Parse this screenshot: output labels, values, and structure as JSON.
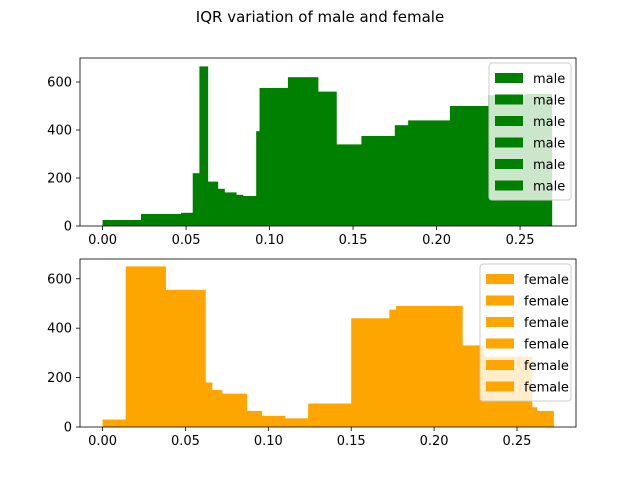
{
  "chart_data": {
    "title": "IQR variation of male and female",
    "panels": [
      {
        "type": "bar",
        "name": "male",
        "color": "#008000",
        "xlim": [
          -0.0135,
          0.2835
        ],
        "ylim": [
          0,
          700
        ],
        "xticks": [
          0.0,
          0.05,
          0.1,
          0.15,
          0.2,
          0.25
        ],
        "xtick_labels": [
          "0.00",
          "0.05",
          "0.10",
          "0.15",
          "0.20",
          "0.25"
        ],
        "yticks": [
          0,
          200,
          400,
          600
        ],
        "ytick_labels": [
          "0",
          "200",
          "400",
          "600"
        ],
        "legend_position": "upper right",
        "legend": [
          "male",
          "male",
          "male",
          "male",
          "male",
          "male"
        ],
        "bins": [
          [
            0.0,
            0.023,
            25
          ],
          [
            0.023,
            0.047,
            50
          ],
          [
            0.047,
            0.054,
            55
          ],
          [
            0.054,
            0.058,
            220
          ],
          [
            0.058,
            0.063,
            665
          ],
          [
            0.063,
            0.069,
            185
          ],
          [
            0.069,
            0.073,
            155
          ],
          [
            0.073,
            0.08,
            140
          ],
          [
            0.08,
            0.084,
            130
          ],
          [
            0.084,
            0.092,
            125
          ],
          [
            0.092,
            0.094,
            395
          ],
          [
            0.094,
            0.111,
            575
          ],
          [
            0.111,
            0.129,
            620
          ],
          [
            0.129,
            0.14,
            560
          ],
          [
            0.14,
            0.155,
            340
          ],
          [
            0.155,
            0.175,
            375
          ],
          [
            0.175,
            0.183,
            420
          ],
          [
            0.183,
            0.193,
            440
          ],
          [
            0.193,
            0.208,
            440
          ],
          [
            0.208,
            0.231,
            500
          ],
          [
            0.231,
            0.253,
            545
          ],
          [
            0.253,
            0.269,
            550
          ]
        ]
      },
      {
        "type": "bar",
        "name": "female",
        "color": "#FFA500",
        "xlim": [
          -0.0136,
          0.2856
        ],
        "ylim": [
          0,
          680
        ],
        "xticks": [
          0.0,
          0.05,
          0.1,
          0.15,
          0.2,
          0.25
        ],
        "xtick_labels": [
          "0.00",
          "0.05",
          "0.10",
          "0.15",
          "0.20",
          "0.25"
        ],
        "yticks": [
          0,
          200,
          400,
          600
        ],
        "ytick_labels": [
          "0",
          "200",
          "400",
          "600"
        ],
        "legend_position": "upper right",
        "legend": [
          "female",
          "female",
          "female",
          "female",
          "female",
          "female"
        ],
        "bins": [
          [
            0.0,
            0.014,
            30
          ],
          [
            0.014,
            0.038,
            650
          ],
          [
            0.038,
            0.062,
            555
          ],
          [
            0.062,
            0.066,
            180
          ],
          [
            0.066,
            0.072,
            150
          ],
          [
            0.072,
            0.087,
            135
          ],
          [
            0.087,
            0.096,
            65
          ],
          [
            0.096,
            0.11,
            45
          ],
          [
            0.11,
            0.124,
            35
          ],
          [
            0.124,
            0.15,
            95
          ],
          [
            0.15,
            0.173,
            440
          ],
          [
            0.173,
            0.177,
            475
          ],
          [
            0.177,
            0.217,
            490
          ],
          [
            0.217,
            0.23,
            330
          ],
          [
            0.23,
            0.259,
            285
          ],
          [
            0.259,
            0.262,
            80
          ],
          [
            0.262,
            0.272,
            65
          ]
        ]
      }
    ]
  },
  "colors": {
    "male": "#008000",
    "female": "#FFA500",
    "legend_border": "#cccccc"
  }
}
